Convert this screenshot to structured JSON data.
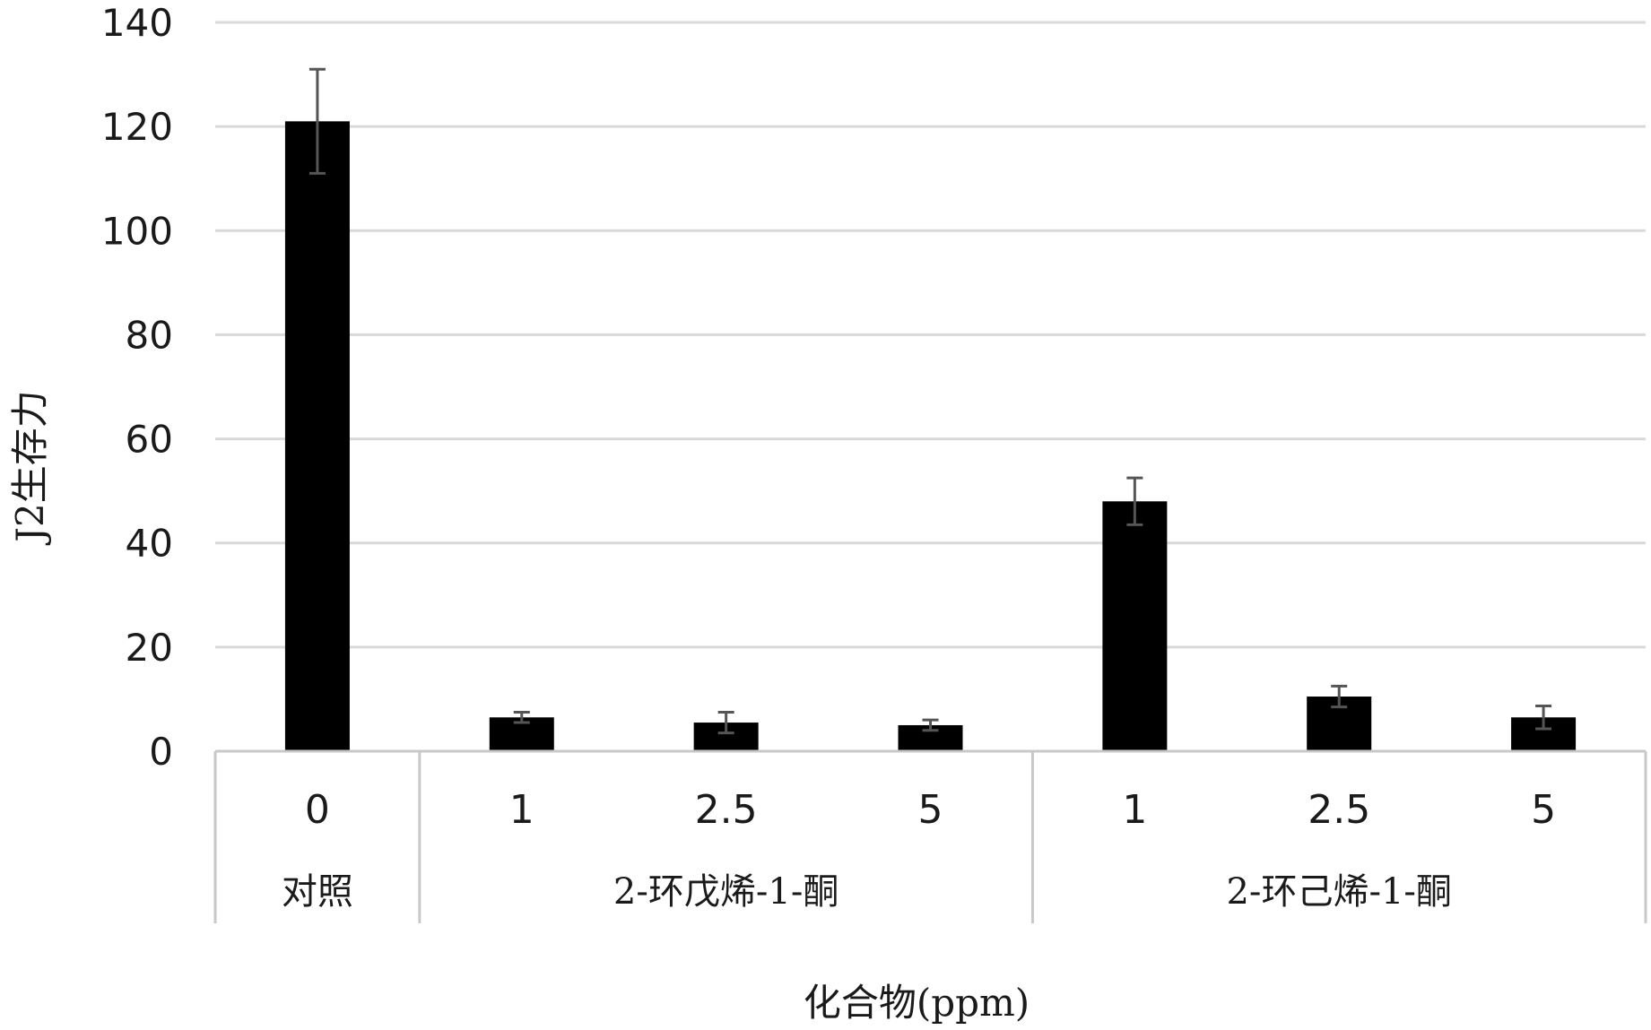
{
  "chart_data": {
    "type": "bar",
    "ylabel": "J2生存力",
    "xlabel": "化合物(ppm)",
    "ylim": [
      0,
      140
    ],
    "yticks": [
      0,
      20,
      40,
      60,
      80,
      100,
      120,
      140
    ],
    "grid": true,
    "bar_color": "#000000",
    "grid_color": "#d9d9d9",
    "error_color": "#555555",
    "groups": [
      {
        "label": "对照",
        "categories": [
          "0"
        ]
      },
      {
        "label": "2-环戊烯-1-酮",
        "categories": [
          "1",
          "2.5",
          "5"
        ]
      },
      {
        "label": "2-环己烯-1-酮",
        "categories": [
          "1",
          "2.5",
          "5"
        ]
      }
    ],
    "values": [
      121,
      6.5,
      5.5,
      5,
      48,
      10.5,
      6.5
    ],
    "errors": [
      10,
      1,
      2,
      1,
      4.5,
      2,
      2.2
    ]
  }
}
